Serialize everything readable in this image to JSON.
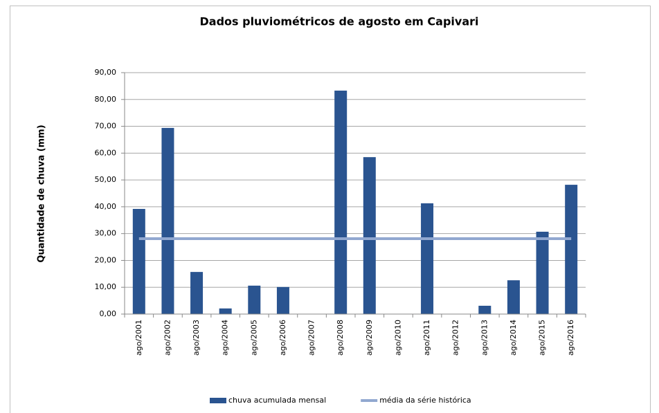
{
  "chart_data": {
    "type": "bar",
    "title": "Dados pluviométricos de agosto em Capivari",
    "y_label": "Quantidade de chuva (mm)",
    "categories": [
      "ago/2001",
      "ago/2002",
      "ago/2003",
      "ago/2004",
      "ago/2005",
      "ago/2006",
      "ago/2007",
      "ago/2008",
      "ago/2009",
      "ago/2010",
      "ago/2011",
      "ago/2012",
      "ago/2013",
      "ago/2014",
      "ago/2015",
      "ago/2016"
    ],
    "series": [
      {
        "name": "chuva acumulada mensal",
        "color": "#2a5490",
        "values": [
          39.2,
          69.4,
          15.7,
          2.1,
          10.6,
          10.1,
          0,
          83.3,
          58.5,
          0,
          41.3,
          0,
          3.1,
          12.6,
          30.7,
          48.2
        ]
      },
      {
        "name": "média da série histórica",
        "color": "#91a8d0",
        "type": "line",
        "values": [
          28.1,
          28.1,
          28.1,
          28.1,
          28.1,
          28.1,
          28.1,
          28.1,
          28.1,
          28.1,
          28.1,
          28.1,
          28.1,
          28.1,
          28.1,
          28.1
        ]
      }
    ],
    "ylim": [
      0,
      90
    ],
    "yticks": [
      {
        "value": 0,
        "label": "0,00"
      },
      {
        "value": 10,
        "label": "10,00"
      },
      {
        "value": 20,
        "label": "20,00"
      },
      {
        "value": 30,
        "label": "30,00"
      },
      {
        "value": 40,
        "label": "40,00"
      },
      {
        "value": 50,
        "label": "50,00"
      },
      {
        "value": 60,
        "label": "60,00"
      },
      {
        "value": 70,
        "label": "70,00"
      },
      {
        "value": 80,
        "label": "80,00"
      },
      {
        "value": 90,
        "label": "90,00"
      }
    ],
    "grid": true,
    "legend": "bottom"
  }
}
